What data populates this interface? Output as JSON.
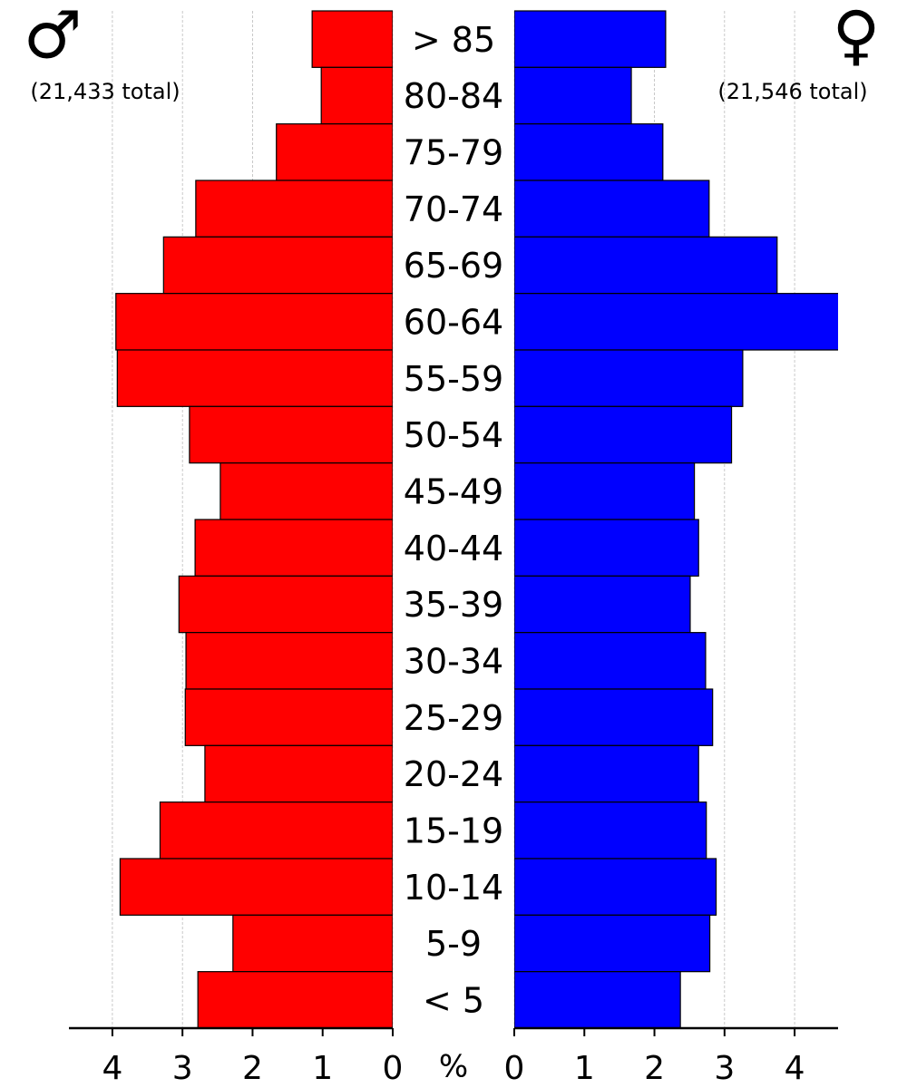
{
  "chart_data": {
    "type": "population-pyramid",
    "categories": [
      "> 85",
      "80-84",
      "75-79",
      "70-74",
      "65-69",
      "60-64",
      "55-59",
      "50-54",
      "45-49",
      "40-44",
      "35-39",
      "30-34",
      "25-29",
      "20-24",
      "15-19",
      "10-14",
      "5-9",
      "< 5"
    ],
    "series": [
      {
        "name": "♂",
        "total_label": "(21,433 total)",
        "color": "#ff0000",
        "values": [
          1.15,
          1.02,
          1.66,
          2.81,
          3.27,
          3.95,
          3.93,
          2.9,
          2.46,
          2.82,
          3.05,
          2.95,
          2.96,
          2.68,
          3.32,
          3.89,
          2.28,
          2.78
        ]
      },
      {
        "name": "♀",
        "total_label": "(21,546 total)",
        "color": "#0000ff",
        "values": [
          2.16,
          1.67,
          2.12,
          2.78,
          3.75,
          4.65,
          3.26,
          3.1,
          2.57,
          2.63,
          2.51,
          2.73,
          2.83,
          2.63,
          2.74,
          2.88,
          2.79,
          2.37
        ]
      }
    ],
    "x_label": "%",
    "xlim": [
      0,
      4.62
    ],
    "xticks": [
      0,
      1,
      2,
      3,
      4
    ],
    "grid": true
  }
}
